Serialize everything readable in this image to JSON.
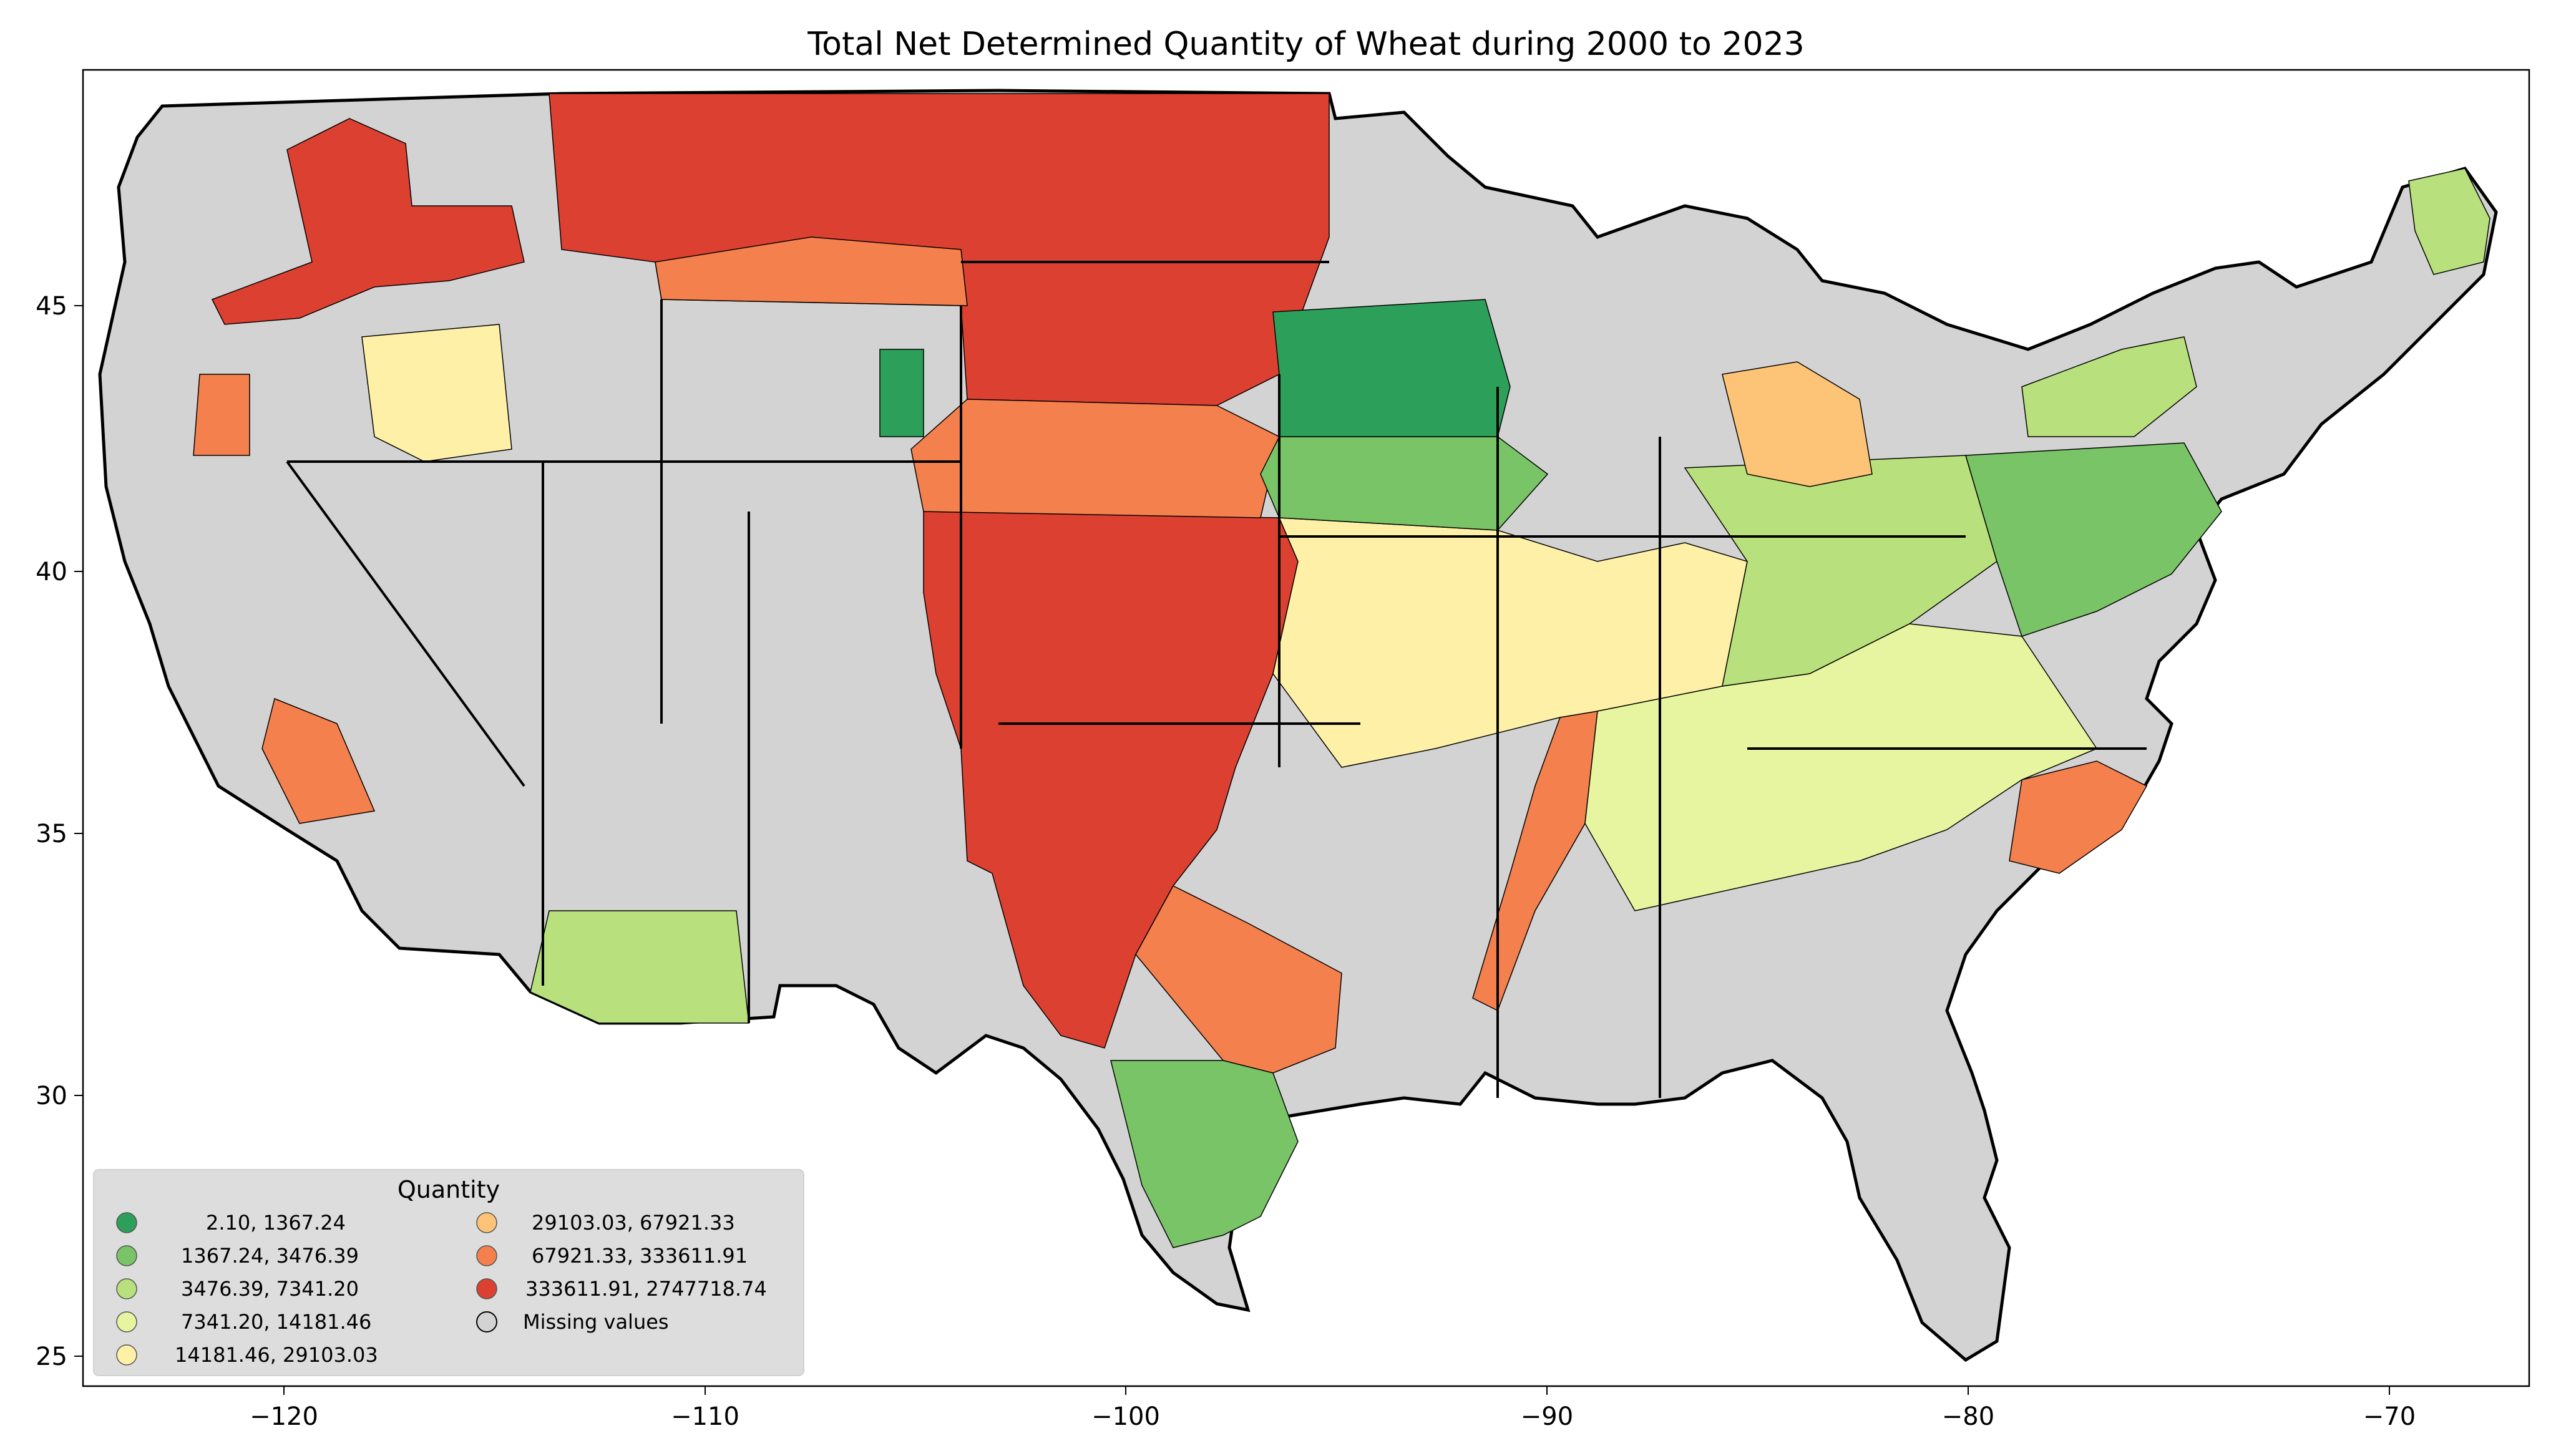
{
  "title": "Total Net Determined Quantity of Wheat during 2000 to 2023",
  "axes": {
    "x_ticks": [
      "−120",
      "−110",
      "−100",
      "−90",
      "−80",
      "−70"
    ],
    "y_ticks": [
      "25",
      "30",
      "35",
      "40",
      "45"
    ]
  },
  "legend": {
    "title": "Quantity",
    "placement": "lower-left",
    "items": [
      {
        "label": "2.10,    1367.24",
        "color": "#2ca05a"
      },
      {
        "label": "1367.24,    3476.39",
        "color": "#78c466"
      },
      {
        "label": "3476.39,    7341.20",
        "color": "#b8e07c"
      },
      {
        "label": "7341.20,   14181.46",
        "color": "#e7f5a0"
      },
      {
        "label": "14181.46,   29103.03",
        "color": "#fff0a8"
      },
      {
        "label": "29103.03,   67921.33",
        "color": "#fdc478"
      },
      {
        "label": "67921.33,  333611.91",
        "color": "#f4804d"
      },
      {
        "label": "333611.91, 2747718.74",
        "color": "#dc4030"
      },
      {
        "label": "Missing values",
        "color": "#d3d3d3"
      }
    ]
  },
  "colors": {
    "missing": "#d3d3d3",
    "border": "#000000",
    "legend_bg": "#dcdcdc"
  }
}
